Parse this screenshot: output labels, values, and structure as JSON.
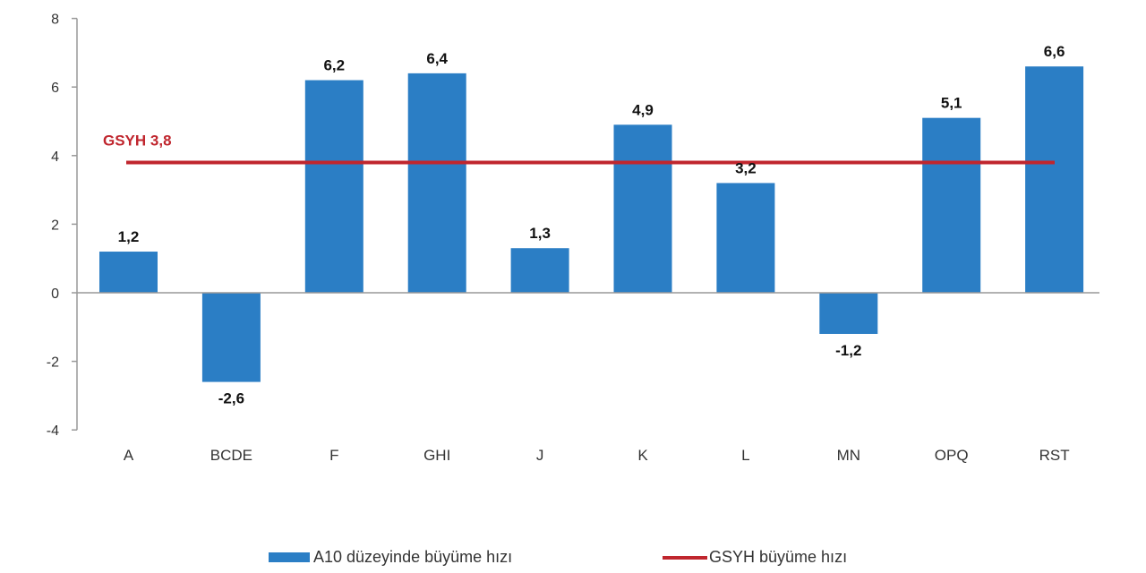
{
  "chart_data": {
    "type": "bar",
    "title": "",
    "xlabel": "",
    "ylabel": "",
    "ylim": [
      -4,
      8
    ],
    "yticks": [
      8,
      6,
      4,
      2,
      0,
      -2,
      -4
    ],
    "grid": false,
    "legend_position": "bottom",
    "categories": [
      "A",
      "BCDE",
      "F",
      "GHI",
      "J",
      "K",
      "L",
      "MN",
      "OPQ",
      "RST"
    ],
    "series": [
      {
        "name": "A10 düzeyinde büyüme hızı",
        "type": "bar",
        "color": "#2b7ec5",
        "values": [
          1.2,
          -2.6,
          6.2,
          6.4,
          1.3,
          4.9,
          3.2,
          -1.2,
          5.1,
          6.6
        ],
        "labels": [
          "1,2",
          "-2,6",
          "6,2",
          "6,4",
          "1,3",
          "4,9",
          "3,2",
          "-1,2",
          "5,1",
          "6,6"
        ]
      },
      {
        "name": "GSYH büyüme hızı",
        "type": "line",
        "color": "#c0262e",
        "value": 3.8
      }
    ],
    "annotations": [
      {
        "text": "GSYH 3,8",
        "color": "#c0262e"
      }
    ]
  },
  "legend": {
    "bar_label": "A10 düzeyinde büyüme hızı",
    "line_label": "GSYH büyüme hızı"
  },
  "colors": {
    "bar": "#2b7ec5",
    "line": "#c0262e",
    "axis": "#999999"
  }
}
